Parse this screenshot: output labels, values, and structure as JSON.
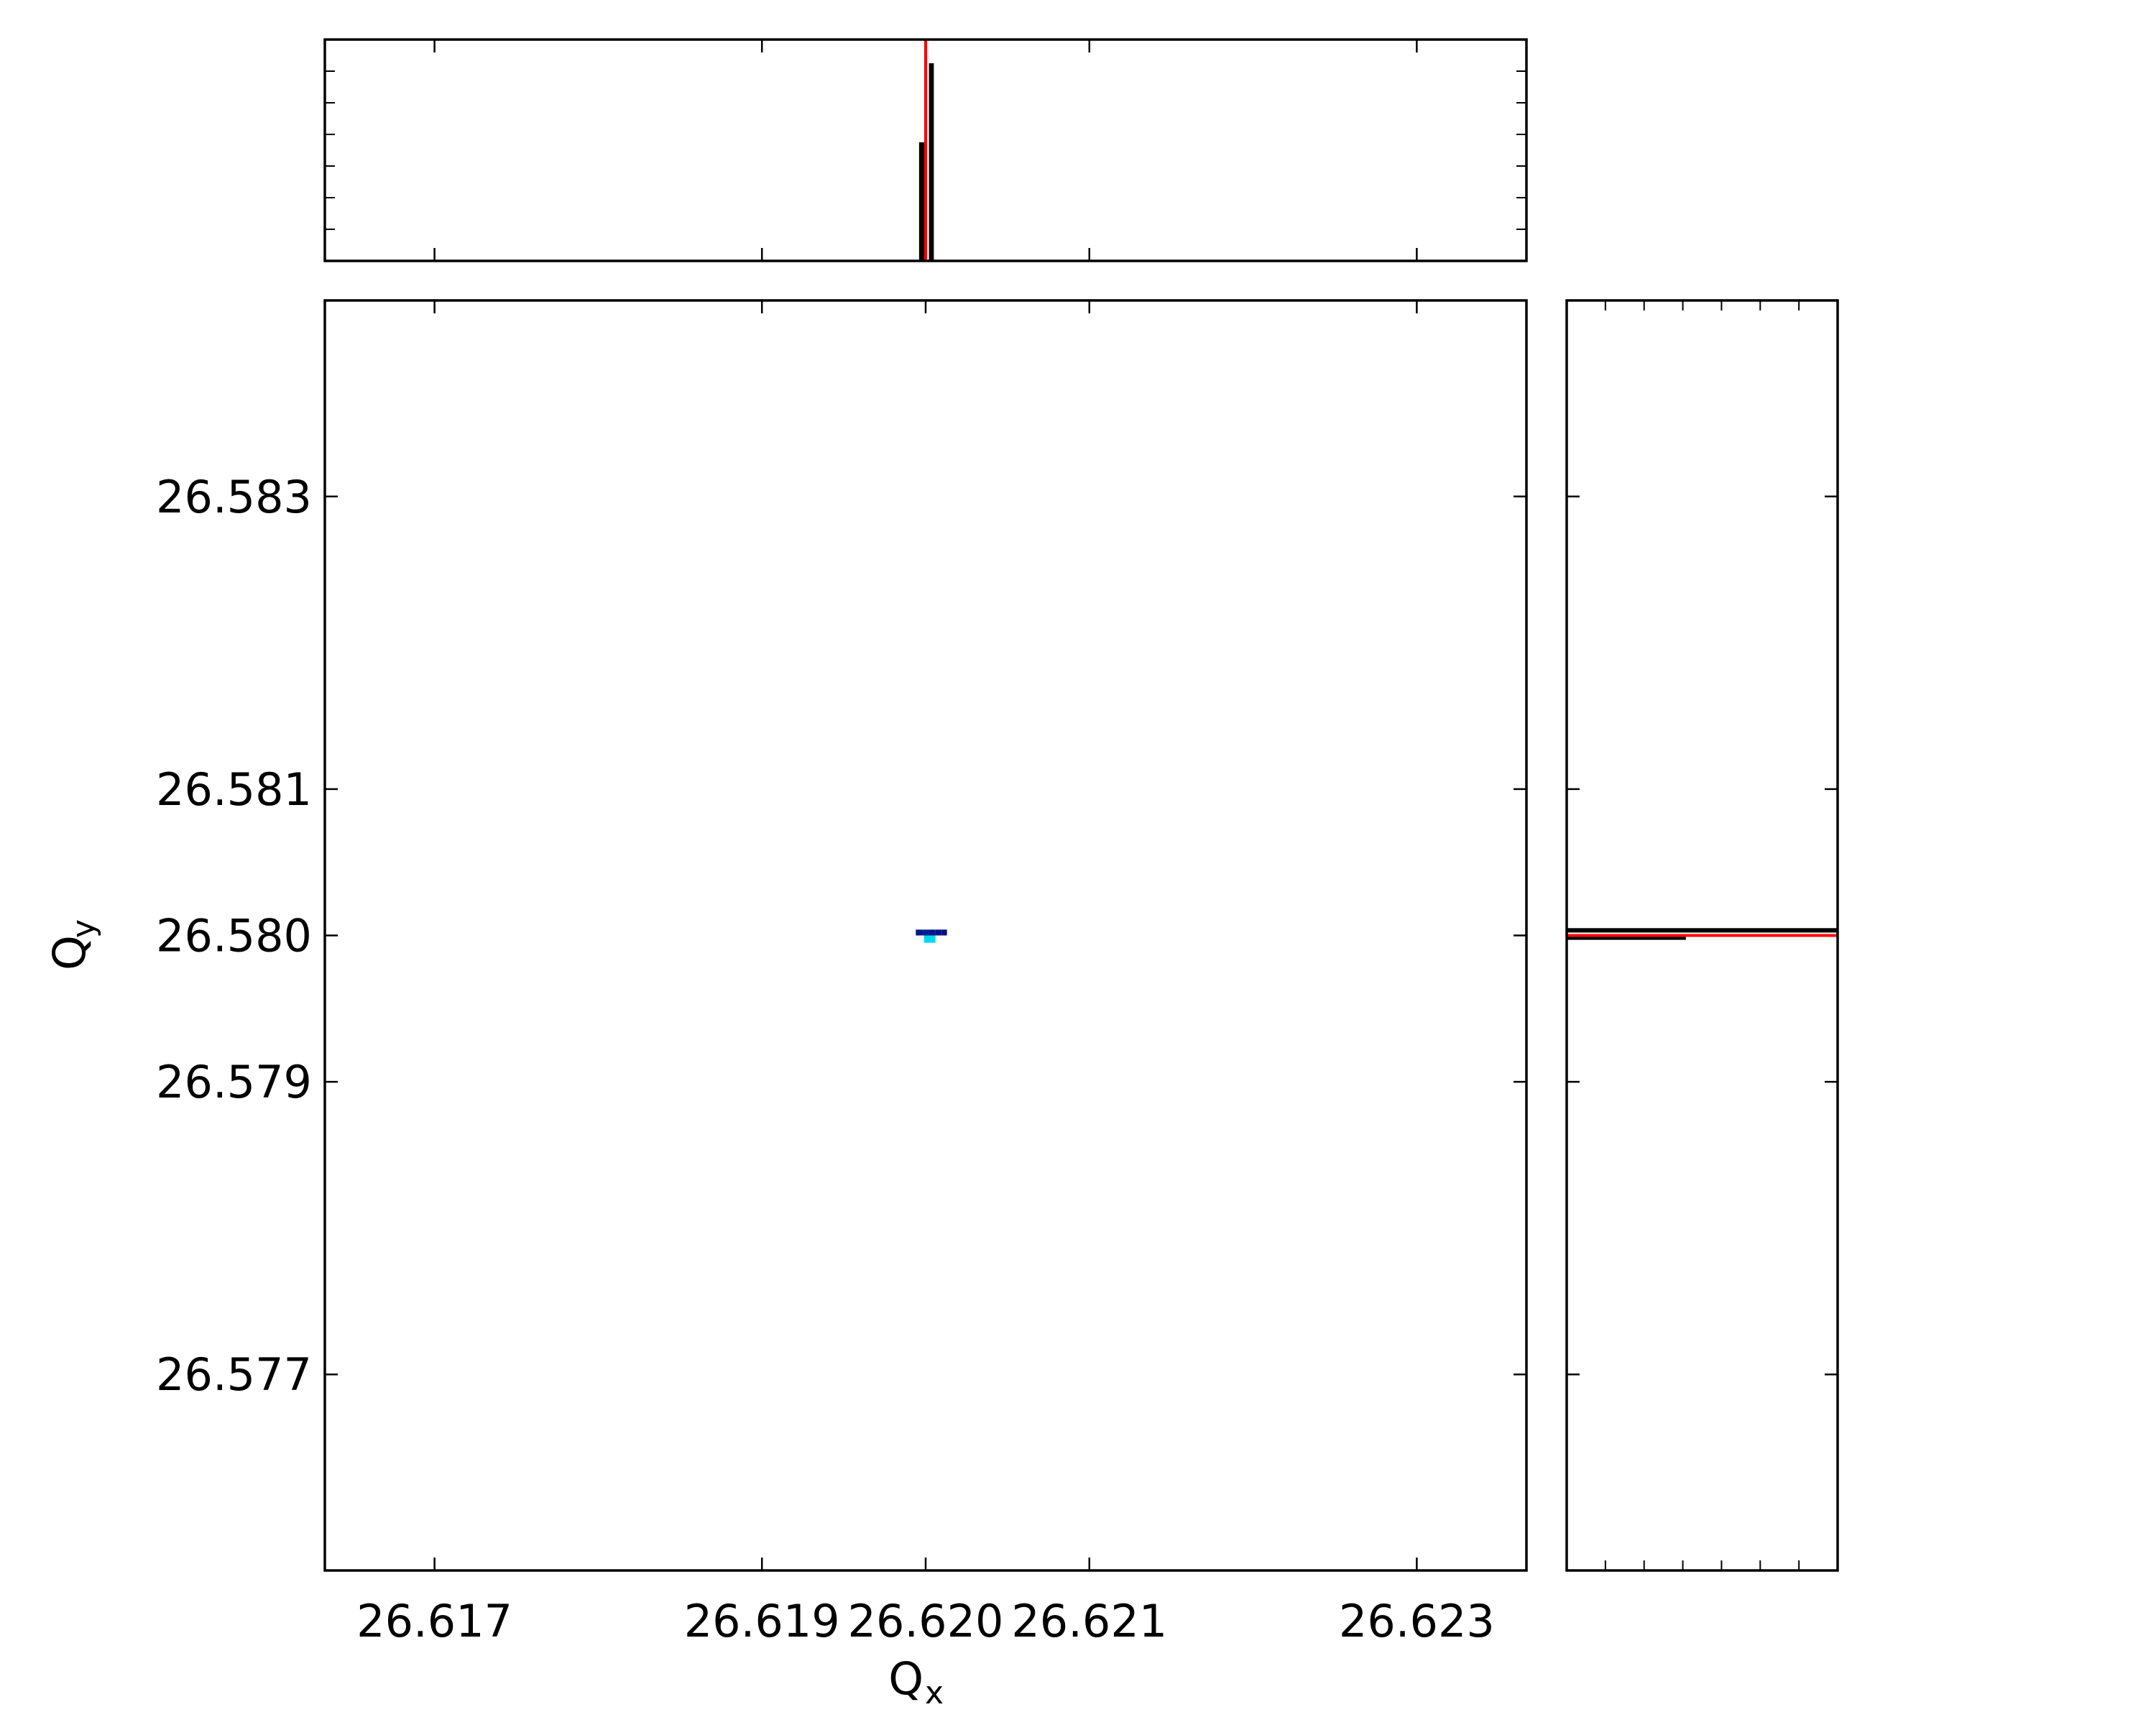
{
  "chart_data": {
    "type": "heatmap",
    "xlabel": "Q",
    "xlabel_sub": "x",
    "ylabel": "Q",
    "ylabel_sub": "y",
    "xlim": [
      26.61633,
      26.62367
    ],
    "ylim": [
      26.57566,
      26.58434
    ],
    "x_ticks": [
      26.617,
      26.619,
      26.62,
      26.621,
      26.623
    ],
    "x_tick_labels": [
      "26.617",
      "26.619",
      "26.620",
      "26.621",
      "26.623"
    ],
    "y_ticks": [
      26.583,
      26.581,
      26.58,
      26.579,
      26.577
    ],
    "y_tick_labels": [
      "26.583",
      "26.581",
      "26.580",
      "26.579",
      "26.577"
    ],
    "grid": false,
    "colors": {
      "hist_bar": "#000000",
      "marker_line": "#ff0000",
      "cell_low": "#000080",
      "cell_high": "#00d8f0"
    },
    "marker": {
      "x": 26.62,
      "y": 26.58
    },
    "cells": [
      {
        "x0": 26.61994,
        "x1": 26.61998,
        "y0": 26.58,
        "y1": 26.58004,
        "level": 0.1
      },
      {
        "x0": 26.61998,
        "x1": 26.62002,
        "y0": 26.58,
        "y1": 26.58004,
        "level": 0.15
      },
      {
        "x0": 26.62002,
        "x1": 26.62006,
        "y0": 26.58,
        "y1": 26.58004,
        "level": 0.1
      },
      {
        "x0": 26.62006,
        "x1": 26.6201,
        "y0": 26.58,
        "y1": 26.58004,
        "level": 0.08
      },
      {
        "x0": 26.6201,
        "x1": 26.62013,
        "y0": 26.58,
        "y1": 26.58004,
        "level": 0.05
      },
      {
        "x0": 26.61999,
        "x1": 26.62006,
        "y0": 26.57995,
        "y1": 26.58,
        "level": 1.0
      }
    ],
    "hist_x": {
      "bins": [
        {
          "x0": 26.61996,
          "x1": 26.62,
          "value": 0.6
        },
        {
          "x0": 26.62002,
          "x1": 26.62005,
          "value": 1.0
        }
      ],
      "ymax": 1.12
    },
    "hist_y": {
      "bins": [
        {
          "y0": 26.58002,
          "y1": 26.58005,
          "value": 1.0
        },
        {
          "y0": 26.57997,
          "y1": 26.57999,
          "value": 0.44
        }
      ],
      "xmax": 1.0
    }
  }
}
